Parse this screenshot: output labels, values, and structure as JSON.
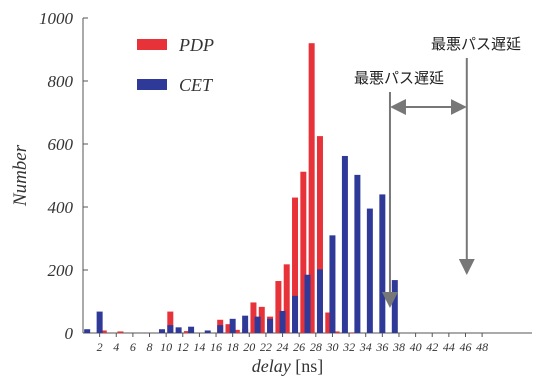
{
  "chart_data": {
    "type": "bar",
    "title": "",
    "xlabel": {
      "italic": "delay",
      "unit": "[ns]"
    },
    "ylabel": "Number",
    "ylim": [
      0,
      1000
    ],
    "yticks": [
      0,
      200,
      400,
      600,
      800,
      1000
    ],
    "xlim": [
      0,
      54
    ],
    "xticks": [
      2,
      4,
      6,
      8,
      10,
      12,
      14,
      16,
      18,
      20,
      22,
      24,
      26,
      28,
      30,
      32,
      34,
      36,
      38,
      40,
      42,
      44,
      46,
      48
    ],
    "grid": false,
    "legend_position": "top-left",
    "series": [
      {
        "name": "PDP",
        "color": "#e8323a",
        "x": [
          2.5,
          4.5,
          10.5,
          12.5,
          16.5,
          17.5,
          18.5,
          19.5,
          20.5,
          21.5,
          22.5,
          23.5,
          24.5,
          25.5,
          26.5,
          27.5,
          28.5,
          29.5,
          30.5,
          31.5,
          32.5
        ],
        "values": [
          8,
          5,
          68,
          6,
          42,
          28,
          10,
          14,
          97,
          83,
          52,
          165,
          218,
          430,
          512,
          920,
          625,
          65,
          5,
          3,
          2
        ]
      },
      {
        "name": "CET",
        "color": "#2f3a98",
        "x": [
          0.5,
          2.0,
          9.5,
          10.5,
          11.5,
          13.0,
          15.0,
          16.5,
          18.0,
          19.5,
          21.0,
          22.5,
          24.0,
          25.5,
          27.0,
          28.5,
          30.0,
          31.5,
          33.0,
          34.5,
          36.0,
          37.5,
          39.0,
          40.5,
          42.0,
          43.5
        ],
        "values": [
          12,
          68,
          12,
          25,
          18,
          20,
          8,
          25,
          45,
          55,
          52,
          45,
          70,
          118,
          185,
          202,
          310,
          562,
          502,
          395,
          440,
          168,
          0,
          0,
          0,
          0
        ]
      }
    ],
    "annotations": [
      {
        "text": "最悪パス遅延",
        "target_series": "PDP",
        "target_x": 38
      },
      {
        "text": "最悪パス遅延",
        "target_series": "CET",
        "target_x": 47
      }
    ]
  }
}
